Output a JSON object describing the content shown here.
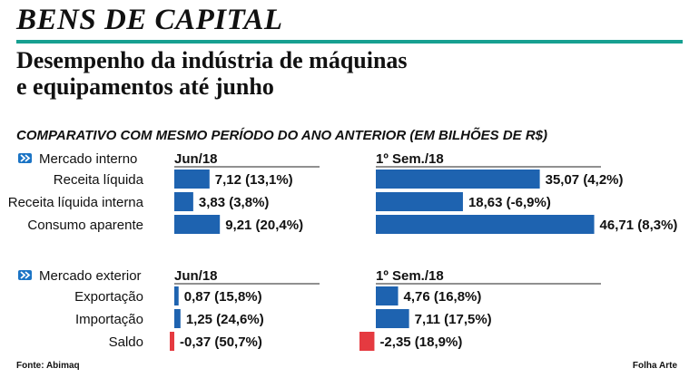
{
  "kicker": "BENS DE CAPITAL",
  "headline_line1": "Desempenho da indústria de máquinas",
  "headline_line2": "e equipamentos até junho",
  "subtitle": "COMPARATIVO COM MESMO PERÍODO DO ANO ANTERIOR (EM BILHÕES DE R$)",
  "source": "Fonte: Abimaq",
  "credit": "Folha Arte",
  "colors": {
    "accent_rule": "#17a091",
    "positive_bar": "#1e63b0",
    "negative_bar": "#e53a40",
    "section_icon": "#1b74c5"
  },
  "chart_data": [
    {
      "type": "bar",
      "section": "Mercado interno",
      "period_labels": [
        "Jun/18",
        "1º Sem./18"
      ],
      "categories": [
        "Receita líquida",
        "Receita líquida interna",
        "Consumo aparente"
      ],
      "series": [
        {
          "name": "Jun/18",
          "values": [
            7.12,
            3.83,
            9.21
          ],
          "labels": [
            "7,12 (13,1%)",
            "3,83 (3,8%)",
            "9,21 (20,4%)"
          ]
        },
        {
          "name": "1º Sem./18",
          "values": [
            35.07,
            18.63,
            46.71
          ],
          "labels": [
            "35,07 (4,2%)",
            "18,63 (-6,9%)",
            "46,71 (8,3%)"
          ]
        }
      ]
    },
    {
      "type": "bar",
      "section": "Mercado exterior",
      "period_labels": [
        "Jun/18",
        "1º Sem./18"
      ],
      "categories": [
        "Exportação",
        "Importação",
        "Saldo"
      ],
      "series": [
        {
          "name": "Jun/18",
          "values": [
            0.87,
            1.25,
            -0.37
          ],
          "labels": [
            "0,87 (15,8%)",
            "1,25 (24,6%)",
            "-0,37 (50,7%)"
          ]
        },
        {
          "name": "1º Sem./18",
          "values": [
            4.76,
            7.11,
            -2.35
          ],
          "labels": [
            "4,76 (16,8%)",
            "7,11 (17,5%)",
            "-2,35 (18,9%)"
          ]
        }
      ]
    }
  ]
}
